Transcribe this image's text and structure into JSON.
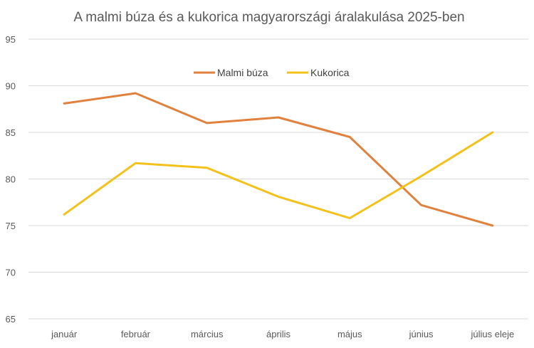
{
  "chart_data": {
    "type": "line",
    "title": "A malmi búza és a kukorica magyarországi áralakulása 2025-ben",
    "xlabel": "",
    "ylabel": "",
    "categories": [
      "január",
      "február",
      "március",
      "április",
      "május",
      "június",
      "július eleje"
    ],
    "ylim": [
      65,
      95
    ],
    "yticks": [
      65,
      70,
      75,
      80,
      85,
      90,
      95
    ],
    "grid": true,
    "legend_position": "top-center",
    "series": [
      {
        "name": "Malmi búza",
        "color": "#E0823D",
        "values": [
          88.1,
          89.2,
          86.0,
          86.6,
          84.5,
          77.2,
          75.0
        ]
      },
      {
        "name": "Kukorica",
        "color": "#F2C21B",
        "values": [
          76.2,
          81.7,
          81.2,
          78.1,
          75.8,
          80.3,
          85.0
        ]
      }
    ]
  }
}
